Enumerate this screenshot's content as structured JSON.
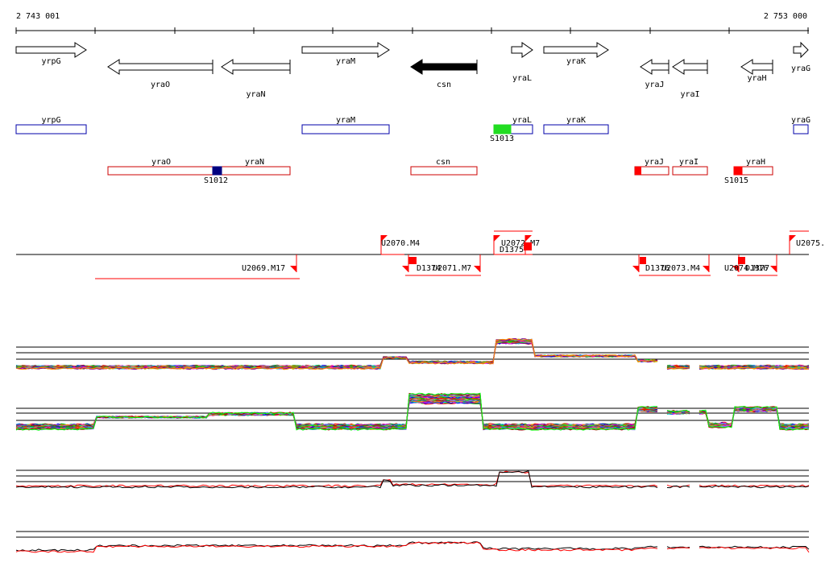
{
  "coords": {
    "start_label": "2 743 001",
    "end_label": "2 753 000"
  },
  "genes": [
    {
      "name": "yrpG",
      "dir": "+",
      "filled": false
    },
    {
      "name": "yraO",
      "dir": "-",
      "filled": false
    },
    {
      "name": "yraN",
      "dir": "-",
      "filled": false
    },
    {
      "name": "yraM",
      "dir": "+",
      "filled": false
    },
    {
      "name": "csn",
      "dir": "-",
      "filled": true
    },
    {
      "name": "yraL",
      "dir": "+",
      "filled": false
    },
    {
      "name": "yraK",
      "dir": "+",
      "filled": false
    },
    {
      "name": "yraJ",
      "dir": "-",
      "filled": false
    },
    {
      "name": "yraI",
      "dir": "-",
      "filled": false
    },
    {
      "name": "yraH",
      "dir": "-",
      "filled": false
    },
    {
      "name": "yraG",
      "dir": "+",
      "filled": false
    }
  ],
  "plus_boxes": [
    "yrpG",
    "yraM",
    "yraL",
    "yraK",
    "yraG"
  ],
  "minus_boxes": [
    "yraO",
    "yraN",
    "csn",
    "yraJ",
    "yraI",
    "yraH"
  ],
  "sites": [
    {
      "name": "S1013",
      "color": "#22dd22"
    },
    {
      "name": "S1012",
      "color": "#000080"
    },
    {
      "name": "S1015",
      "color": "#ff0000"
    }
  ],
  "features_top": [
    "U2070.M4",
    "U2072.M7",
    "D1375",
    "U2075."
  ],
  "features_bottom": [
    "U2069.M17",
    "D1374",
    "U2071.M7",
    "D1376",
    "U2073.M4",
    "D1377",
    "U2074.M16"
  ],
  "colors": {
    "plus_box": "#0000aa",
    "minus_box": "#cc0000",
    "feature": "#ff0000"
  }
}
